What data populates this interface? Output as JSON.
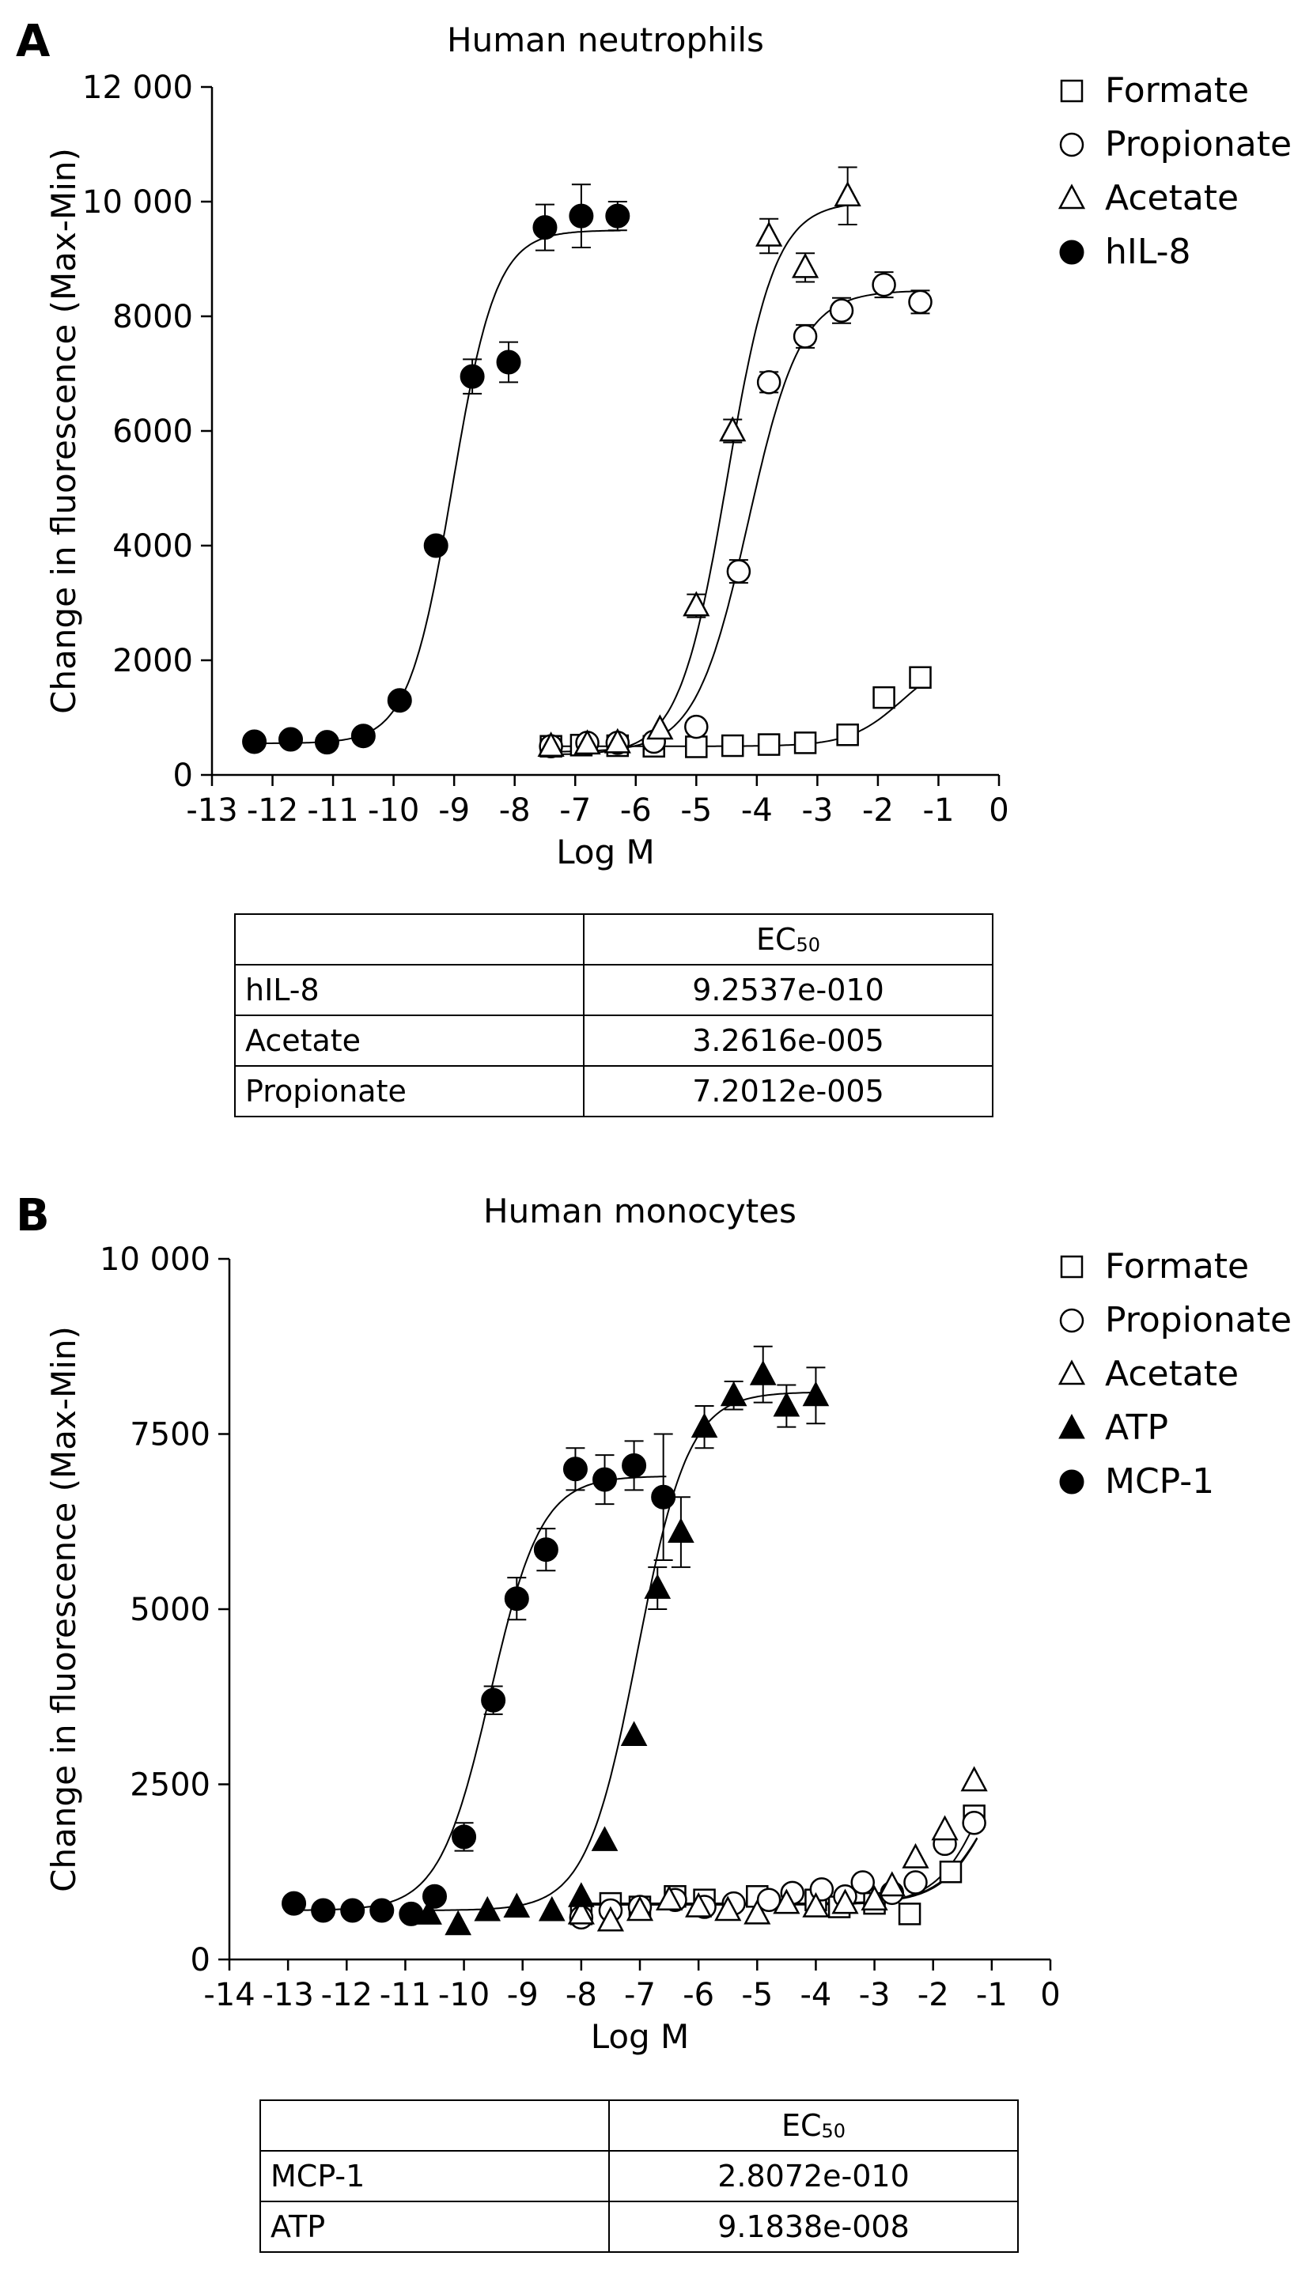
{
  "charts": [
    {
      "panel": "A",
      "title": "Human neutrophils",
      "xlabel": "Log M",
      "ylabel": "Change in fluorescence (Max-Min)",
      "xticks": [
        "-13",
        "-12",
        "-11",
        "-10",
        "-9",
        "-8",
        "-7",
        "-6",
        "-5",
        "-4",
        "-3",
        "-2",
        "-1",
        "0"
      ],
      "yticks": [
        "0",
        "2000",
        "4000",
        "6000",
        "8000",
        "10 000",
        "12 000"
      ],
      "legend": [
        "Formate",
        "Propionate",
        "Acetate",
        "hIL-8"
      ],
      "table": {
        "header": "EC",
        "header_sub": "50",
        "rows": [
          {
            "name": "hIL-8",
            "ec50": "9.2537e-010"
          },
          {
            "name": "Acetate",
            "ec50": "3.2616e-005"
          },
          {
            "name": "Propionate",
            "ec50": "7.2012e-005"
          }
        ]
      }
    },
    {
      "panel": "B",
      "title": "Human monocytes",
      "xlabel": "Log M",
      "ylabel": "Change in fluorescence (Max-Min)",
      "xticks": [
        "-14",
        "-13",
        "-12",
        "-11",
        "-10",
        "-9",
        "-8",
        "-7",
        "-6",
        "-5",
        "-4",
        "-3",
        "-2",
        "-1",
        "0"
      ],
      "yticks": [
        "0",
        "2500",
        "5000",
        "7500",
        "10 000"
      ],
      "legend": [
        "Formate",
        "Propionate",
        "Acetate",
        "ATP",
        "MCP-1"
      ],
      "table": {
        "header": "EC",
        "header_sub": "50",
        "rows": [
          {
            "name": "MCP-1",
            "ec50": "2.8072e-010"
          },
          {
            "name": "ATP",
            "ec50": "9.1838e-008"
          }
        ]
      }
    }
  ],
  "chart_data": [
    {
      "type": "scatter",
      "title": "Human neutrophils",
      "xlabel": "Log M",
      "ylabel": "Change in fluorescence (Max-Min)",
      "xlim": [
        -13,
        0
      ],
      "ylim": [
        0,
        12000
      ],
      "legend_position": "top-right",
      "series": [
        {
          "name": "Formate",
          "marker": "open-square",
          "points": [
            [
              -7.4,
              500
            ],
            [
              -6.9,
              520
            ],
            [
              -6.3,
              510
            ],
            [
              -5.7,
              500
            ],
            [
              -5.0,
              490
            ],
            [
              -4.4,
              510
            ],
            [
              -3.8,
              530
            ],
            [
              -3.2,
              560
            ],
            [
              -2.5,
              700
            ],
            [
              -1.9,
              1350
            ],
            [
              -1.3,
              1700
            ]
          ],
          "errors": [
            0,
            0,
            0,
            0,
            0,
            0,
            0,
            0,
            0,
            0,
            0
          ],
          "fit": {
            "bottom": 500,
            "top": 2100,
            "logec50": -1.6,
            "hill": 1.0
          }
        },
        {
          "name": "Propionate",
          "marker": "open-circle",
          "points": [
            [
              -7.4,
              500
            ],
            [
              -6.8,
              560
            ],
            [
              -6.3,
              560
            ],
            [
              -5.7,
              580
            ],
            [
              -5.0,
              840
            ],
            [
              -4.3,
              3550
            ],
            [
              -3.8,
              6850
            ],
            [
              -3.2,
              7650
            ],
            [
              -2.6,
              8100
            ],
            [
              -1.9,
              8550
            ],
            [
              -1.3,
              8250
            ]
          ],
          "errors": [
            0,
            0,
            0,
            0,
            0,
            200,
            180,
            200,
            220,
            220,
            200
          ],
          "fit": {
            "bottom": 400,
            "top": 8450,
            "logec50": -4.14,
            "hill": 1.0
          }
        },
        {
          "name": "Acetate",
          "marker": "open-triangle",
          "points": [
            [
              -7.4,
              500
            ],
            [
              -6.8,
              540
            ],
            [
              -6.3,
              560
            ],
            [
              -5.6,
              800
            ],
            [
              -5.0,
              2950
            ],
            [
              -4.4,
              6000
            ],
            [
              -3.8,
              9400
            ],
            [
              -3.2,
              8850
            ],
            [
              -2.5,
              10100
            ]
          ],
          "errors": [
            0,
            0,
            0,
            0,
            200,
            200,
            300,
            250,
            500
          ],
          "fit": {
            "bottom": 350,
            "top": 10000,
            "logec50": -4.49,
            "hill": 1.1
          }
        },
        {
          "name": "hIL-8",
          "marker": "filled-circle",
          "points": [
            [
              -12.3,
              580
            ],
            [
              -11.7,
              620
            ],
            [
              -11.1,
              570
            ],
            [
              -10.5,
              680
            ],
            [
              -9.9,
              1300
            ],
            [
              -9.3,
              4000
            ],
            [
              -8.7,
              6950
            ],
            [
              -8.1,
              7200
            ],
            [
              -7.5,
              9550
            ],
            [
              -6.9,
              9750
            ],
            [
              -6.3,
              9750
            ]
          ],
          "errors": [
            0,
            0,
            0,
            0,
            0,
            0,
            300,
            350,
            400,
            550,
            250
          ],
          "fit": {
            "bottom": 550,
            "top": 9500,
            "logec50": -9.03,
            "hill": 1.2
          }
        }
      ]
    },
    {
      "type": "scatter",
      "title": "Human monocytes",
      "xlabel": "Log M",
      "ylabel": "Change in fluorescence (Max-Min)",
      "xlim": [
        -14,
        0
      ],
      "ylim": [
        0,
        10000
      ],
      "legend_position": "top-right",
      "series": [
        {
          "name": "Formate",
          "marker": "open-square",
          "points": [
            [
              -8.0,
              650
            ],
            [
              -7.5,
              800
            ],
            [
              -7.0,
              750
            ],
            [
              -6.4,
              900
            ],
            [
              -5.9,
              850
            ],
            [
              -5.0,
              900
            ],
            [
              -4.0,
              850
            ],
            [
              -3.6,
              750
            ],
            [
              -3.0,
              800
            ],
            [
              -2.4,
              650
            ],
            [
              -1.7,
              1250
            ],
            [
              -1.3,
              2050
            ]
          ],
          "errors": [
            0,
            0,
            0,
            0,
            0,
            0,
            0,
            0,
            0,
            0,
            0,
            0
          ],
          "fit": {
            "bottom": 800,
            "top": 3800,
            "logec50": -0.9,
            "hill": 1.0
          }
        },
        {
          "name": "Propionate",
          "marker": "open-circle",
          "points": [
            [
              -8.0,
              600
            ],
            [
              -7.5,
              700
            ],
            [
              -7.0,
              750
            ],
            [
              -6.4,
              850
            ],
            [
              -5.9,
              750
            ],
            [
              -5.4,
              800
            ],
            [
              -4.8,
              850
            ],
            [
              -4.4,
              950
            ],
            [
              -3.9,
              1000
            ],
            [
              -3.5,
              900
            ],
            [
              -3.2,
              1100
            ],
            [
              -2.7,
              950
            ],
            [
              -2.3,
              1100
            ],
            [
              -1.8,
              1650
            ],
            [
              -1.3,
              1950
            ]
          ],
          "errors": [
            0,
            0,
            0,
            0,
            0,
            0,
            0,
            0,
            0,
            0,
            0,
            0,
            0,
            0,
            0
          ],
          "fit": {
            "bottom": 800,
            "top": 3400,
            "logec50": -1.0,
            "hill": 1.0
          }
        },
        {
          "name": "Acetate",
          "marker": "open-triangle",
          "points": [
            [
              -8.0,
              650
            ],
            [
              -7.5,
              550
            ],
            [
              -7.0,
              700
            ],
            [
              -6.5,
              850
            ],
            [
              -6.0,
              750
            ],
            [
              -5.5,
              700
            ],
            [
              -5.0,
              650
            ],
            [
              -4.5,
              800
            ],
            [
              -4.0,
              750
            ],
            [
              -3.5,
              800
            ],
            [
              -3.0,
              850
            ],
            [
              -2.7,
              1050
            ],
            [
              -2.3,
              1450
            ],
            [
              -1.8,
              1850
            ],
            [
              -1.3,
              2550
            ]
          ],
          "errors": [
            0,
            0,
            0,
            0,
            0,
            0,
            0,
            0,
            0,
            0,
            0,
            0,
            0,
            0,
            0
          ],
          "fit": {
            "bottom": 780,
            "top": 4200,
            "logec50": -1.0,
            "hill": 1.0
          }
        },
        {
          "name": "ATP",
          "marker": "filled-triangle",
          "points": [
            [
              -10.6,
              650
            ],
            [
              -10.1,
              500
            ],
            [
              -9.6,
              700
            ],
            [
              -9.1,
              750
            ],
            [
              -8.5,
              700
            ],
            [
              -8.0,
              900
            ],
            [
              -7.6,
              1700
            ],
            [
              -7.1,
              3200
            ],
            [
              -6.7,
              5300
            ],
            [
              -6.3,
              6100
            ],
            [
              -5.9,
              7600
            ],
            [
              -5.4,
              8050
            ],
            [
              -4.9,
              8350
            ],
            [
              -4.5,
              7900
            ],
            [
              -4.0,
              8050
            ]
          ],
          "errors": [
            0,
            0,
            0,
            0,
            0,
            0,
            0,
            0,
            300,
            500,
            300,
            200,
            400,
            300,
            400
          ],
          "fit": {
            "bottom": 700,
            "top": 8100,
            "logec50": -7.04,
            "hill": 1.0
          }
        },
        {
          "name": "MCP-1",
          "marker": "filled-circle",
          "points": [
            [
              -12.9,
              800
            ],
            [
              -12.4,
              700
            ],
            [
              -11.9,
              700
            ],
            [
              -11.4,
              700
            ],
            [
              -10.9,
              650
            ],
            [
              -10.5,
              900
            ],
            [
              -10.0,
              1750
            ],
            [
              -9.5,
              3700
            ],
            [
              -9.1,
              5150
            ],
            [
              -8.6,
              5850
            ],
            [
              -8.1,
              7000
            ],
            [
              -7.6,
              6850
            ],
            [
              -7.1,
              7050
            ],
            [
              -6.6,
              6600
            ]
          ],
          "errors": [
            0,
            0,
            0,
            0,
            0,
            0,
            200,
            200,
            300,
            300,
            300,
            350,
            350,
            900
          ],
          "fit": {
            "bottom": 700,
            "top": 6900,
            "logec50": -9.55,
            "hill": 1.0
          }
        }
      ]
    }
  ]
}
